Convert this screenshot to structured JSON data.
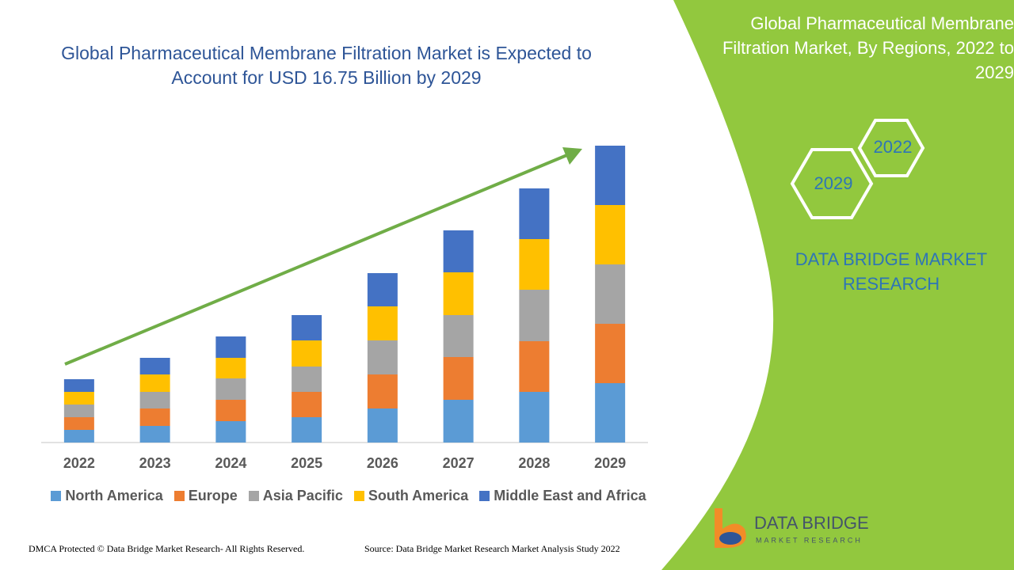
{
  "chart_data": {
    "type": "bar",
    "stacked": true,
    "title": "Global Pharmaceutical Membrane Filtration Market is Expected to Account for USD 16.75 Billion by 2029",
    "categories": [
      "2022",
      "2023",
      "2024",
      "2025",
      "2026",
      "2027",
      "2028",
      "2029"
    ],
    "series": [
      {
        "name": "North America",
        "color": "#5b9bd5",
        "values": [
          16,
          21,
          27,
          32,
          43,
          54,
          64,
          75
        ]
      },
      {
        "name": "Europe",
        "color": "#ed7d31",
        "values": [
          16,
          22,
          27,
          32,
          43,
          54,
          64,
          75
        ]
      },
      {
        "name": "Asia Pacific",
        "color": "#a5a5a5",
        "values": [
          16,
          21,
          27,
          32,
          43,
          53,
          65,
          75
        ]
      },
      {
        "name": "South America",
        "color": "#ffc000",
        "values": [
          16,
          22,
          26,
          33,
          43,
          54,
          64,
          75
        ]
      },
      {
        "name": "Middle East and Africa",
        "color": "#4472c4",
        "values": [
          16,
          21,
          27,
          32,
          42,
          53,
          64,
          75
        ]
      }
    ],
    "ylim": [
      0,
      375
    ],
    "legend": "bottom"
  },
  "side_panel": {
    "title": "Global Pharmaceutical Membrane Filtration Market, By Regions, 2022 to 2029",
    "hexagons": [
      "2022",
      "2029"
    ],
    "brand": "DATA BRIDGE MARKET RESEARCH"
  },
  "logo": {
    "name": "DATA BRIDGE",
    "tagline": "MARKET RESEARCH"
  },
  "footer": {
    "copyright": "DMCA Protected © Data Bridge Market Research- All Rights Reserved.",
    "source": "Source: Data Bridge Market Research Market Analysis Study 2022"
  }
}
